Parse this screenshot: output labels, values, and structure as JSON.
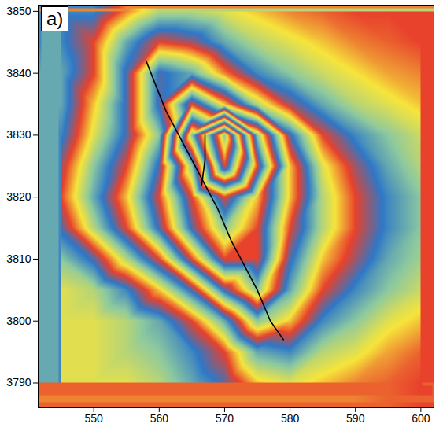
{
  "chart_data": {
    "type": "interferogram",
    "title": "a)",
    "xlim": [
      541.5,
      602
    ],
    "ylim": [
      3786,
      3851
    ],
    "xticks": [
      550,
      560,
      570,
      580,
      590,
      600
    ],
    "yticks": [
      3790,
      3800,
      3810,
      3820,
      3830,
      3840,
      3850
    ],
    "phase": {
      "x": [
        545,
        550,
        555,
        560,
        565,
        570,
        575,
        580,
        585,
        590,
        595,
        600
      ],
      "y": [
        3850,
        3845,
        3840,
        3835,
        3830,
        3825,
        3820,
        3815,
        3810,
        3805,
        3800,
        3795,
        3790
      ],
      "values": [
        [
          -0.3,
          -0.3,
          0.1,
          0.4,
          0.4,
          0.3,
          0.2,
          0.1,
          0.05,
          0,
          0,
          0
        ],
        [
          -0.3,
          0.0,
          0.6,
          1.0,
          0.9,
          0.6,
          0.4,
          0.3,
          0.2,
          0.1,
          0.05,
          0
        ],
        [
          -0.4,
          0.0,
          0.8,
          1.8,
          1.6,
          1.1,
          0.7,
          0.5,
          0.35,
          0.25,
          0.15,
          0.1
        ],
        [
          -0.4,
          0.2,
          0.8,
          1.8,
          3.0,
          2.2,
          1.4,
          0.9,
          0.6,
          0.4,
          0.3,
          0.2
        ],
        [
          -0.3,
          0.3,
          0.8,
          1.5,
          4.5,
          6.5,
          3.5,
          1.8,
          1.0,
          0.7,
          0.5,
          0.35
        ],
        [
          -0.1,
          0.5,
          1.0,
          1.8,
          3.5,
          6.0,
          4.0,
          2.2,
          1.3,
          0.9,
          0.6,
          0.4
        ],
        [
          0.0,
          0.6,
          1.2,
          2.0,
          3.0,
          4.0,
          3.2,
          2.2,
          1.4,
          1.0,
          0.7,
          0.5
        ],
        [
          -0.2,
          0.4,
          1.0,
          1.8,
          2.8,
          3.5,
          3.0,
          2.0,
          1.4,
          1.0,
          0.7,
          0.5
        ],
        [
          -0.5,
          -0.2,
          0.4,
          1.0,
          2.0,
          3.0,
          3.0,
          1.8,
          1.2,
          0.9,
          0.6,
          0.45
        ],
        [
          -0.7,
          -0.6,
          -0.3,
          0.2,
          0.8,
          1.8,
          2.5,
          1.6,
          1.0,
          0.7,
          0.5,
          0.35
        ],
        [
          -0.7,
          -0.7,
          -0.6,
          -0.4,
          0.0,
          0.6,
          1.5,
          1.2,
          0.7,
          0.5,
          0.3,
          0.2
        ],
        [
          -0.7,
          -0.7,
          -0.6,
          -0.5,
          -0.3,
          0.0,
          0.6,
          0.7,
          0.4,
          0.3,
          0.15,
          0.05
        ],
        [
          -0.7,
          -0.7,
          -0.7,
          -0.6,
          -0.4,
          -0.2,
          0.2,
          0.3,
          0.2,
          0.1,
          0.05,
          0
        ]
      ]
    },
    "series": [
      {
        "color": "#000000",
        "x": [
          558,
          559.5,
          561,
          563,
          565,
          567,
          569,
          571,
          572.5,
          575,
          577,
          579
        ],
        "y": [
          3842,
          3838,
          3834,
          3830,
          3826,
          3822,
          3818,
          3813,
          3810,
          3805,
          3800,
          3797
        ]
      },
      {
        "color": "#000000",
        "x": [
          567,
          567,
          566.5
        ],
        "y": [
          3830,
          3826,
          3822
        ]
      }
    ],
    "tick_labels": true
  }
}
